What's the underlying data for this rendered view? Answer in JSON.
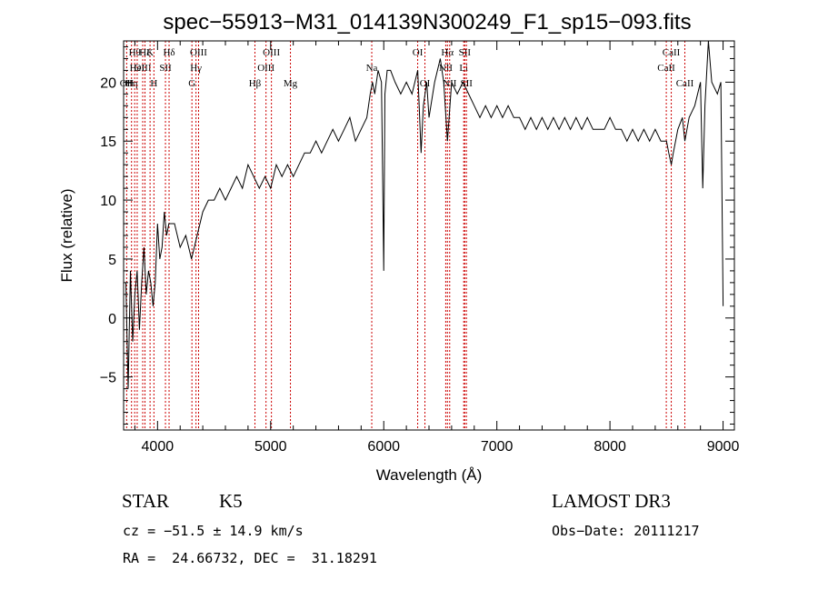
{
  "chart_data": {
    "type": "line",
    "title": "spec−55913−M31_014139N300249_F1_sp15−093.fits",
    "xlabel": "Wavelength (Å)",
    "ylabel": "Flux (relative)",
    "xlim": [
      3700,
      9100
    ],
    "ylim": [
      -9.5,
      23.5
    ],
    "xticks": [
      4000,
      5000,
      6000,
      7000,
      8000,
      9000
    ],
    "xtick_labels": [
      "4000",
      "5000",
      "6000",
      "7000",
      "8000",
      "9000"
    ],
    "yticks": [
      -5,
      0,
      5,
      10,
      15,
      20
    ],
    "ytick_labels": [
      "−5",
      "0",
      "5",
      "10",
      "15",
      "20"
    ],
    "grid": false,
    "line_color": "#000000",
    "marker_color": "#cc0000",
    "series": [
      {
        "x": [
          3720,
          3740,
          3760,
          3780,
          3800,
          3820,
          3840,
          3860,
          3880,
          3900,
          3920,
          3940,
          3960,
          3980,
          4000,
          4020,
          4040,
          4060,
          4080,
          4100,
          4150,
          4200,
          4250,
          4300,
          4350,
          4400,
          4450,
          4500,
          4550,
          4600,
          4650,
          4700,
          4750,
          4800,
          4850,
          4900,
          4950,
          5000,
          5050,
          5100,
          5150,
          5200,
          5250,
          5300,
          5350,
          5400,
          5450,
          5500,
          5550,
          5600,
          5650,
          5700,
          5750,
          5800,
          5850,
          5880,
          5900,
          5920,
          5950,
          5980,
          5990,
          6000,
          6010,
          6030,
          6060,
          6100,
          6150,
          6200,
          6250,
          6300,
          6330,
          6350,
          6380,
          6400,
          6450,
          6500,
          6530,
          6563,
          6600,
          6650,
          6700,
          6750,
          6800,
          6850,
          6900,
          6950,
          7000,
          7050,
          7100,
          7150,
          7200,
          7250,
          7300,
          7350,
          7400,
          7450,
          7500,
          7550,
          7600,
          7650,
          7700,
          7750,
          7800,
          7850,
          7900,
          7950,
          8000,
          8050,
          8100,
          8150,
          8200,
          8250,
          8300,
          8350,
          8400,
          8450,
          8500,
          8520,
          8542,
          8560,
          8600,
          8640,
          8662,
          8700,
          8750,
          8800,
          8820,
          8840,
          8870,
          8900,
          8950,
          8980,
          9000
        ],
        "y": [
          3,
          -6,
          4,
          -2,
          2,
          4,
          -1,
          3,
          6,
          2,
          4,
          3,
          1,
          3,
          8,
          5,
          6,
          9,
          7,
          8,
          8,
          6,
          7,
          5,
          7,
          9,
          10,
          10,
          11,
          10,
          11,
          12,
          11,
          13,
          12,
          11,
          12,
          11,
          13,
          12,
          13,
          12,
          13,
          14,
          14,
          15,
          14,
          15,
          16,
          15,
          16,
          17,
          15,
          16,
          17,
          19,
          20,
          19,
          21,
          20,
          12,
          4,
          19,
          21,
          21,
          20,
          19,
          20,
          19,
          21,
          14,
          18,
          20,
          17,
          20,
          22,
          20,
          15,
          20,
          19,
          20,
          19,
          18,
          17,
          18,
          17,
          18,
          17,
          18,
          17,
          17,
          16,
          17,
          16,
          17,
          16,
          17,
          16,
          17,
          16,
          17,
          16,
          17,
          16,
          16,
          16,
          17,
          16,
          16,
          15,
          16,
          15,
          16,
          15,
          16,
          15,
          15,
          14,
          13,
          14,
          16,
          17,
          15,
          17,
          18,
          20,
          11,
          18,
          24,
          20,
          19,
          20,
          1
        ]
      }
    ],
    "line_markers": [
      {
        "x": 3727,
        "label": "OII",
        "row": 2
      },
      {
        "x": 3770,
        "label": "Hη",
        "row": 2
      },
      {
        "x": 3798,
        "label": "Hθ",
        "row": 0
      },
      {
        "x": 3820,
        "label": "HeI",
        "row": 1
      },
      {
        "x": 3869,
        "label": "OIII",
        "row": 1
      },
      {
        "x": 3889,
        "label": "Hζ",
        "row": 0
      },
      {
        "x": 3934,
        "label": "K",
        "row": 0
      },
      {
        "x": 3968,
        "label": "H",
        "row": 2
      },
      {
        "x": 4070,
        "label": "SII",
        "row": 1
      },
      {
        "x": 4102,
        "label": "Hδ",
        "row": 0
      },
      {
        "x": 4304,
        "label": "G",
        "row": 2
      },
      {
        "x": 4340,
        "label": "Hγ",
        "row": 1
      },
      {
        "x": 4363,
        "label": "OIII",
        "row": 0
      },
      {
        "x": 4861,
        "label": "Hβ",
        "row": 2
      },
      {
        "x": 4959,
        "label": "OIII",
        "row": 1
      },
      {
        "x": 5007,
        "label": "OIII",
        "row": 0
      },
      {
        "x": 5175,
        "label": "Mg",
        "row": 2
      },
      {
        "x": 5894,
        "label": "Na",
        "row": 1
      },
      {
        "x": 6300,
        "label": "OI",
        "row": 0
      },
      {
        "x": 6364,
        "label": "OI",
        "row": 2
      },
      {
        "x": 6548,
        "label": "NII",
        "row": 1
      },
      {
        "x": 6563,
        "label": "Hα",
        "row": 0
      },
      {
        "x": 6583,
        "label": "NII",
        "row": 2
      },
      {
        "x": 6707,
        "label": "Li",
        "row": 1
      },
      {
        "x": 6716,
        "label": "SII",
        "row": 0
      },
      {
        "x": 6731,
        "label": "SII",
        "row": 2
      },
      {
        "x": 8498,
        "label": "CaII",
        "row": 1
      },
      {
        "x": 8542,
        "label": "CaII",
        "row": 0
      },
      {
        "x": 8662,
        "label": "CaII",
        "row": 2
      }
    ]
  },
  "info": {
    "object_class": "STAR",
    "subclass": "K5",
    "survey": "LAMOST DR3",
    "cz": "cz = −51.5 ± 14.9 km/s",
    "obs_date": "Obs−Date: 20111217",
    "coords": "RA =  24.66732, DEC =  31.18291"
  }
}
